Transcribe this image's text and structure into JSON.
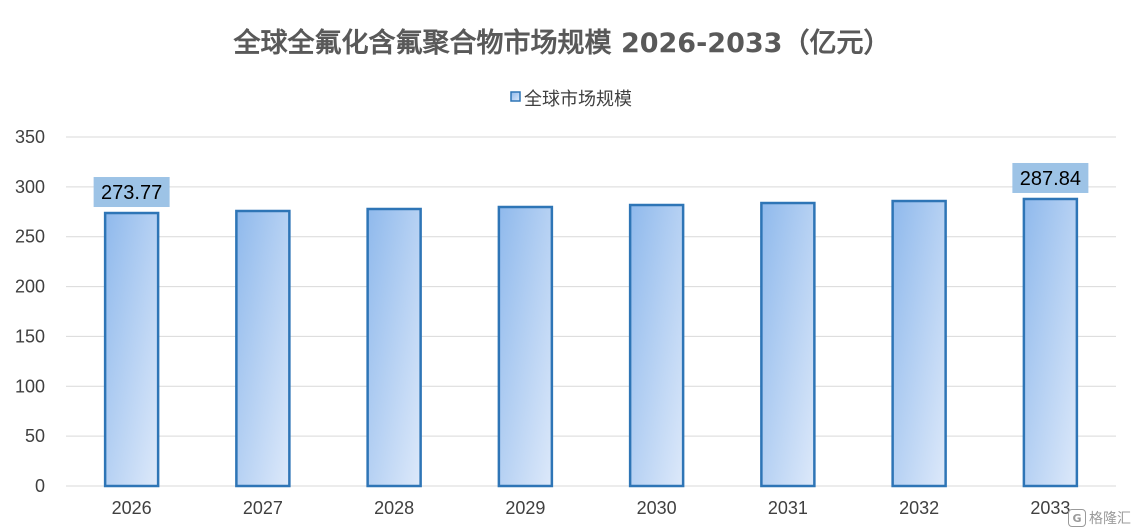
{
  "colors": {
    "bar_fill_top": "#8fb9ec",
    "bar_fill_bottom": "#dde9fa",
    "bar_stroke": "#2e75b6",
    "label_bg": "#9dc3e6",
    "grid": "#d9d9d9",
    "axis_text": "#404040"
  },
  "watermark": {
    "text": "格隆汇",
    "logo_glyph": "G"
  },
  "chart_data": {
    "type": "bar",
    "title": "全球全氟化含氟聚合物市场规模 2026-2033（亿元）",
    "xlabel": "",
    "ylabel": "",
    "categories": [
      "2026",
      "2027",
      "2028",
      "2029",
      "2030",
      "2031",
      "2032",
      "2033"
    ],
    "series": [
      {
        "name": "全球市场规模",
        "values": [
          273.77,
          275.8,
          277.8,
          279.8,
          281.8,
          283.8,
          285.8,
          287.84
        ]
      }
    ],
    "data_labels": [
      {
        "category": "2026",
        "text": "273.77"
      },
      {
        "category": "2033",
        "text": "287.84"
      }
    ],
    "ylim": [
      0,
      350
    ],
    "yticks": [
      "0",
      "50",
      "100",
      "150",
      "200",
      "250",
      "300",
      "350"
    ],
    "grid": true,
    "legend_position": "top-center"
  }
}
